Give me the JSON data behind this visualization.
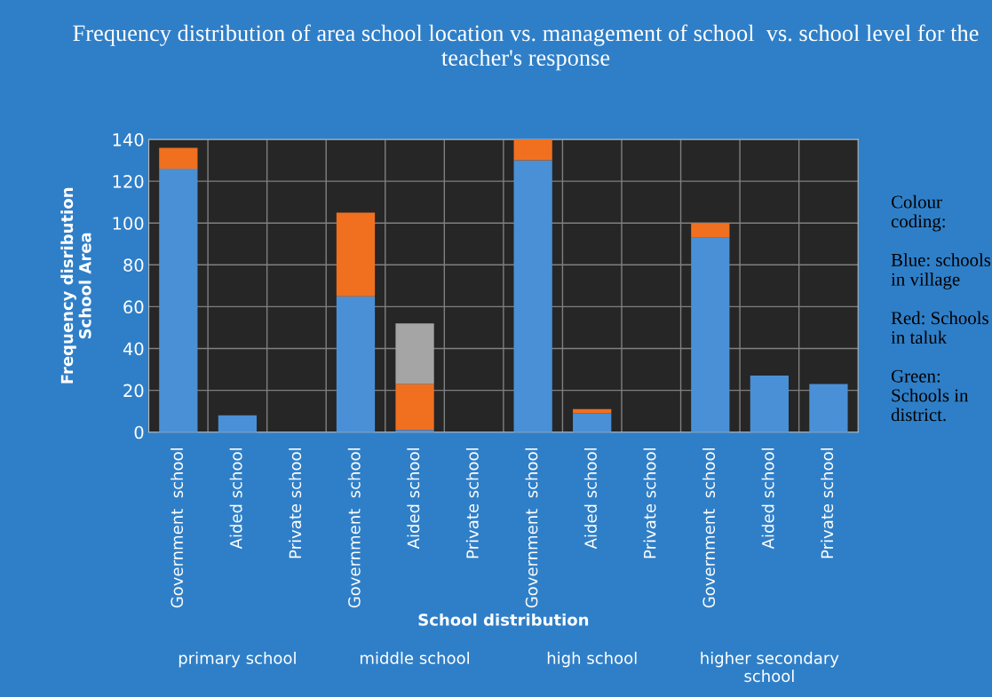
{
  "chart_data": {
    "type": "bar",
    "stacked": true,
    "title": "Frequency distribution of area school location vs. management of school  vs. school level for the teacher's response",
    "xlabel": "School distribution",
    "ylabel": "Frequency disribution\nSchool Area",
    "categories": [
      "Government  school",
      "Aided school",
      "Private school",
      "Government  school",
      "Aided school",
      "Private school",
      "Government  school",
      "Aided school",
      "Private school",
      "Government  school",
      "Aided school",
      "Private school"
    ],
    "series": [
      {
        "color": "#4a90d6",
        "values": [
          126,
          8,
          0,
          65,
          1,
          0,
          130,
          9,
          0,
          93,
          27,
          23
        ]
      },
      {
        "color": "#f07020",
        "values": [
          10,
          0,
          0,
          40,
          22,
          0,
          10,
          2,
          0,
          7,
          0,
          0
        ]
      },
      {
        "color": "#a5a5a5",
        "values": [
          0,
          0,
          0,
          0,
          29,
          0,
          0,
          0,
          0,
          0,
          0,
          0
        ]
      }
    ],
    "ylim": [
      0,
      140
    ],
    "yticks": [
      0,
      20,
      40,
      60,
      80,
      100,
      120,
      140
    ],
    "grid": "y",
    "legend": false,
    "annotations": [
      "primary school",
      "middle school",
      "high school",
      "higher secondary\nschool",
      "Colour coding:\n\nBlue: schools in village\n\nRed: Schools in taluk\n\nGreen: Schools in district."
    ]
  }
}
